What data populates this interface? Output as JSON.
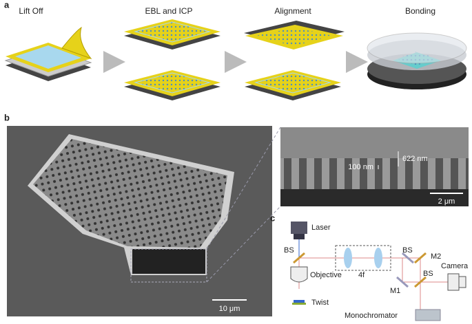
{
  "panels": {
    "a": {
      "label": "a",
      "steps": [
        "Lift Off",
        "EBL and ICP",
        "Alignment",
        "Bonding"
      ]
    },
    "b": {
      "label": "b",
      "dimensions": [
        "622 nm",
        "100 nm"
      ],
      "scale_bars": {
        "inset": "2 μm",
        "main": "10 μm"
      }
    },
    "c": {
      "label": "c",
      "components": {
        "laser": "Laser",
        "bs1": "BS",
        "bs2": "BS",
        "bs3": "BS",
        "m2": "M2",
        "m1": "M1",
        "camera": "Camera",
        "objective": "Objective",
        "lens": "4f",
        "twist": "Twist",
        "monochromator": "Monochromator"
      }
    }
  }
}
